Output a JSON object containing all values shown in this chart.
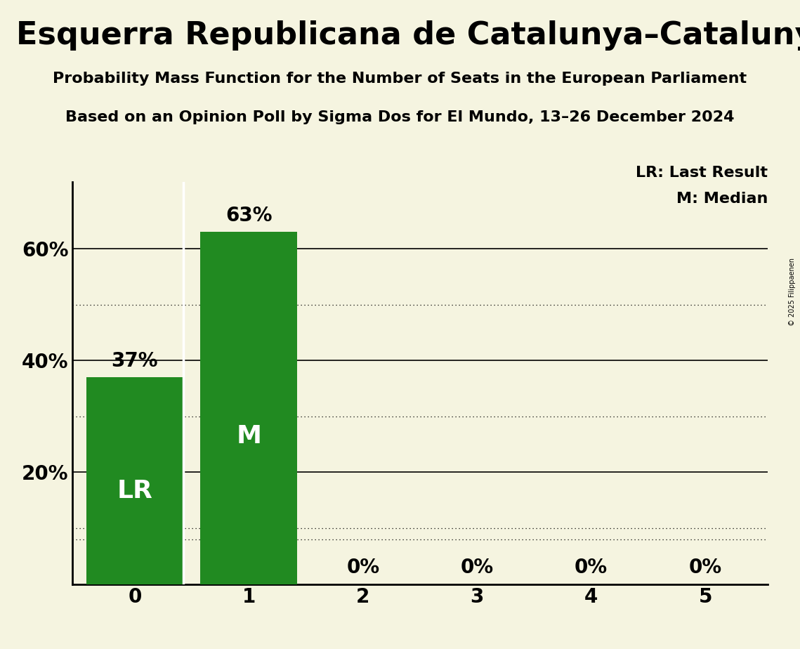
{
  "title_main": "Esquerra Republicana de Catalunya–Catalunya Sí (Greens/EFA)",
  "subtitle1": "Probability Mass Function for the Number of Seats in the European Parliament",
  "subtitle2": "Based on an Opinion Poll by Sigma Dos for El Mundo, 13–26 December 2024",
  "categories": [
    0,
    1,
    2,
    3,
    4,
    5
  ],
  "values": [
    0.37,
    0.63,
    0.0,
    0.0,
    0.0,
    0.0
  ],
  "bar_color": "#218a21",
  "lr_value": 0.37,
  "m_value": 0.63,
  "background_color": "#f5f4e0",
  "ylim": [
    0,
    0.72
  ],
  "yticks": [
    0.2,
    0.4,
    0.6
  ],
  "ytick_labels": [
    "20%",
    "40%",
    "60%"
  ],
  "solid_grid": [
    0.2,
    0.4,
    0.6
  ],
  "dotted_grid_values": [
    0.1,
    0.3,
    0.5,
    0.08
  ],
  "legend_lr": "LR: Last Result",
  "legend_m": "M: Median",
  "copyright": "© 2025 Filippaenen",
  "bar_width": 0.85,
  "title_fontsize": 32,
  "subtitle_fontsize": 16,
  "axis_tick_fontsize": 20,
  "bar_label_fontsize": 20,
  "bar_inner_label_fontsize": 26,
  "legend_fontsize": 16
}
